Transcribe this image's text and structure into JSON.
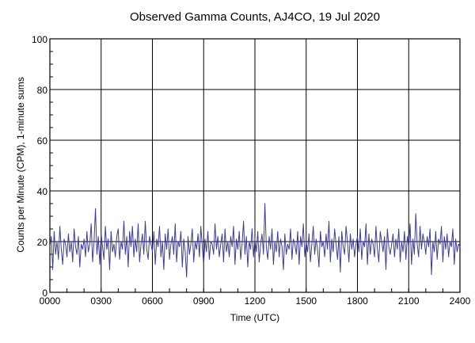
{
  "chart_data": {
    "type": "line",
    "title": "Observed Gamma Counts, AJ4CO, 19 Jul 2020",
    "xlabel": "Time (UTC)",
    "ylabel": "Counts per Minute (CPM), 1-minute sums",
    "xlim": [
      "0000",
      "2400"
    ],
    "ylim": [
      0,
      100
    ],
    "x_ticks": [
      "0000",
      "0300",
      "0600",
      "0900",
      "1200",
      "1500",
      "1800",
      "2100",
      "2400"
    ],
    "y_ticks": [
      "0",
      "20",
      "40",
      "60",
      "80",
      "100"
    ],
    "grid": true,
    "series_color": "#3c3c9c",
    "x_start": "0000",
    "x_step_minutes": 5,
    "values": [
      18,
      22,
      9,
      24,
      15,
      20,
      13,
      26,
      17,
      11,
      21,
      19,
      14,
      23,
      16,
      20,
      12,
      25,
      18,
      15,
      22,
      10,
      19,
      17,
      21,
      14,
      24,
      16,
      19,
      27,
      12,
      20,
      33,
      15,
      22,
      11,
      23,
      18,
      13,
      26,
      17,
      21,
      9,
      24,
      16,
      19,
      14,
      22,
      25,
      13,
      20,
      17,
      28,
      15,
      22,
      10,
      24,
      18,
      26,
      14,
      21,
      16,
      27,
      12,
      19,
      23,
      15,
      28,
      17,
      13,
      22,
      19,
      16,
      24,
      11,
      21,
      18,
      26,
      14,
      20,
      9,
      23,
      17,
      25,
      13,
      19,
      22,
      15,
      27,
      12,
      20,
      18,
      24,
      10,
      21,
      16,
      6,
      22,
      15,
      19,
      25,
      12,
      20,
      17,
      23,
      14,
      26,
      18,
      11,
      21,
      16,
      24,
      13,
      20,
      19,
      15,
      27,
      17,
      22,
      14,
      19,
      23,
      12,
      25,
      16,
      20,
      14,
      22,
      18,
      26,
      11,
      21,
      17,
      24,
      13,
      19,
      28,
      15,
      22,
      10,
      20,
      17,
      25,
      14,
      21,
      16,
      24,
      12,
      19,
      23,
      15,
      35,
      18,
      13,
      22,
      17,
      25,
      11,
      20,
      16,
      24,
      14,
      21,
      18,
      9,
      23,
      15,
      19,
      17,
      25,
      13,
      21,
      19,
      15,
      24,
      11,
      22,
      18,
      27,
      14,
      20,
      16,
      23,
      12,
      19,
      26,
      15,
      21,
      17,
      10,
      24,
      18,
      20,
      14,
      23,
      17,
      28,
      12,
      21,
      16,
      25,
      19,
      13,
      22,
      8,
      24,
      18,
      15,
      26,
      20,
      12,
      23,
      17,
      21,
      14,
      19,
      22,
      16,
      25,
      13,
      20,
      18,
      27,
      11,
      23,
      15,
      21,
      19,
      14,
      26,
      17,
      12,
      24,
      20,
      16,
      22,
      9,
      25,
      18,
      15,
      19,
      23,
      14,
      21,
      17,
      25,
      12,
      20,
      16,
      24,
      13,
      22,
      18,
      27,
      11,
      21,
      15,
      31,
      19,
      14,
      26,
      17,
      23,
      20,
      15,
      22,
      18,
      25,
      7,
      20,
      16,
      24,
      13,
      21,
      19,
      26,
      12,
      22,
      17,
      23,
      14,
      20,
      18,
      25,
      11,
      21,
      16,
      19,
      18
    ]
  }
}
